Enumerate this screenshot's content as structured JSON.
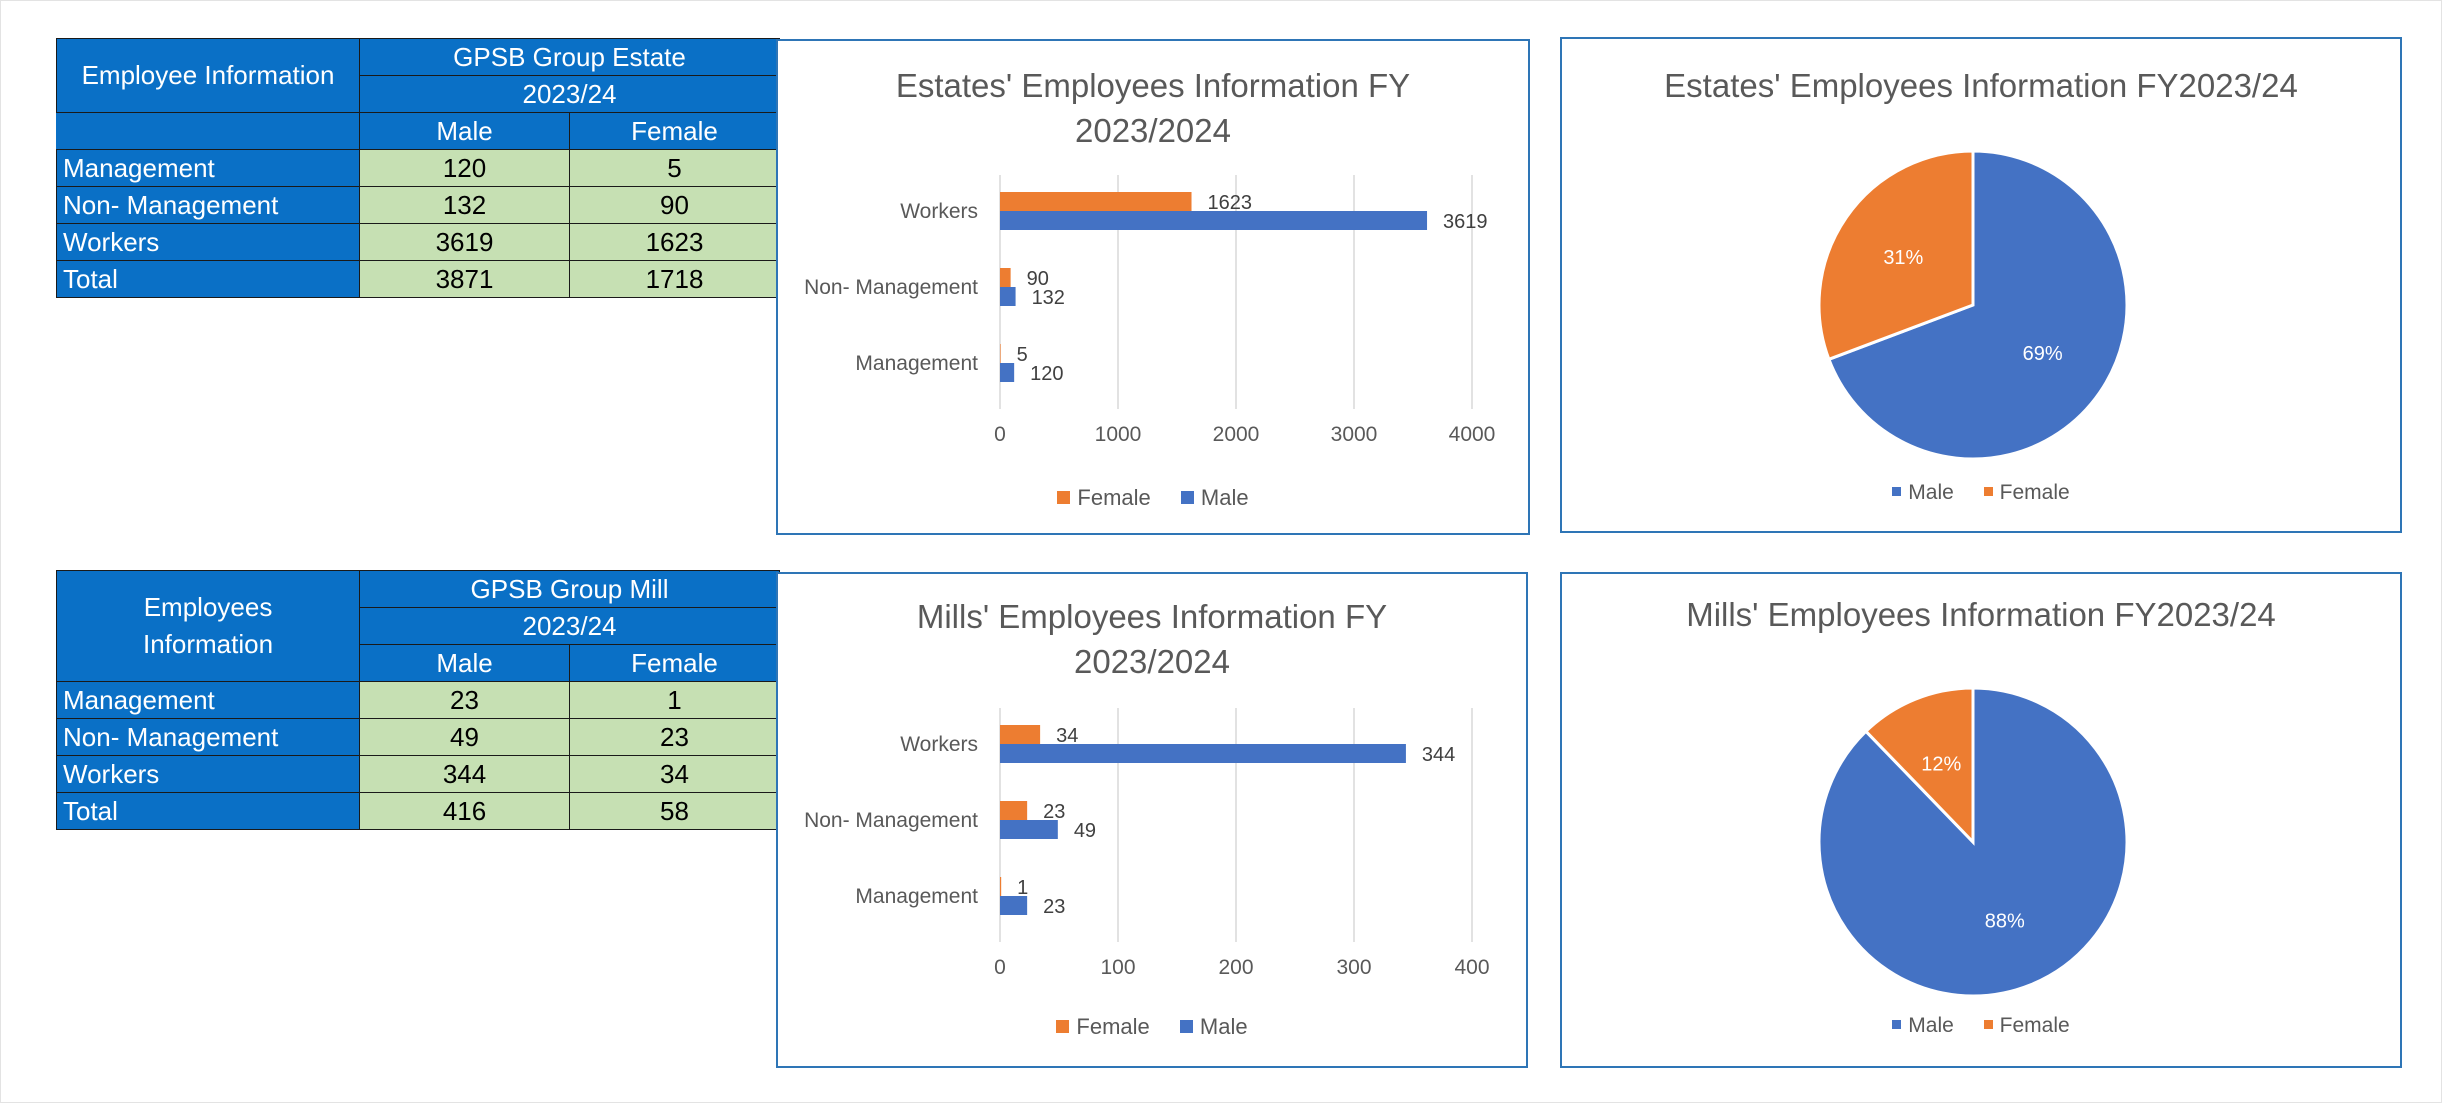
{
  "colors": {
    "male": "#4472c4",
    "female": "#ed7d31",
    "header": "#0a70c6",
    "cell": "#c6e0b3",
    "chart_border": "#2e75b6"
  },
  "estate_table": {
    "corner": "Employee Information",
    "group": "GPSB Group Estate",
    "year": "2023/24",
    "col_male": "Male",
    "col_female": "Female",
    "rows": [
      {
        "label": "Management",
        "male": "120",
        "female": "5"
      },
      {
        "label": "Non- Management",
        "male": "132",
        "female": "90"
      },
      {
        "label": "Workers",
        "male": "3619",
        "female": "1623"
      },
      {
        "label": "Total",
        "male": "3871",
        "female": "1718"
      }
    ]
  },
  "mill_table": {
    "corner": "Employees Information",
    "group": "GPSB Group Mill",
    "year": "2023/24",
    "col_male": "Male",
    "col_female": "Female",
    "rows": [
      {
        "label": "Management",
        "male": "23",
        "female": "1"
      },
      {
        "label": "Non- Management",
        "male": "49",
        "female": "23"
      },
      {
        "label": "Workers",
        "male": "344",
        "female": "34"
      },
      {
        "label": "Total",
        "male": "416",
        "female": "58"
      }
    ]
  },
  "chart_data": [
    {
      "type": "bar",
      "orientation": "horizontal",
      "title": "Estates' Employees Information FY 2023/2024",
      "categories": [
        "Workers",
        "Non- Management",
        "Management"
      ],
      "series": [
        {
          "name": "Female",
          "values": [
            1623,
            90,
            5
          ]
        },
        {
          "name": "Male",
          "values": [
            3619,
            132,
            120
          ]
        }
      ],
      "xlim": [
        0,
        4000
      ],
      "xticks": [
        0,
        1000,
        2000,
        3000,
        4000
      ],
      "grid": true,
      "legend": "bottom"
    },
    {
      "type": "pie",
      "title": "Estates' Employees Information FY2023/24",
      "labels": [
        "Male",
        "Female"
      ],
      "values": [
        3871,
        1718
      ],
      "data_labels": [
        "69%",
        "31%"
      ],
      "legend": "bottom"
    },
    {
      "type": "bar",
      "orientation": "horizontal",
      "title": "Mills' Employees Information FY 2023/2024",
      "categories": [
        "Workers",
        "Non- Management",
        "Management"
      ],
      "series": [
        {
          "name": "Female",
          "values": [
            34,
            23,
            1
          ]
        },
        {
          "name": "Male",
          "values": [
            344,
            49,
            23
          ]
        }
      ],
      "xlim": [
        0,
        400
      ],
      "xticks": [
        0,
        100,
        200,
        300,
        400
      ],
      "grid": true,
      "legend": "bottom"
    },
    {
      "type": "pie",
      "title": "Mills' Employees Information FY2023/24",
      "labels": [
        "Male",
        "Female"
      ],
      "values": [
        416,
        58
      ],
      "data_labels": [
        "88%",
        "12%"
      ],
      "legend": "bottom"
    }
  ]
}
